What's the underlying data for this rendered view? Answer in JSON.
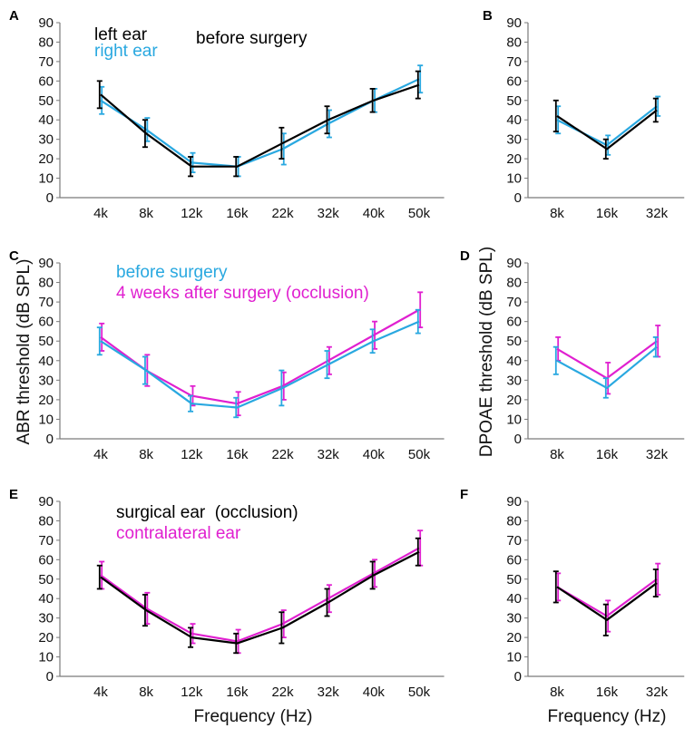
{
  "figure": {
    "ylabel_abr": "ABR threshold (dB SPL)",
    "ylabel_dpoae": "DPOAE threshold (dB SPL)",
    "xlabel_left": "Frequency (Hz)",
    "xlabel_right": "Frequency (Hz)"
  },
  "chart_data": [
    {
      "panel": "A",
      "type": "line",
      "categories": [
        "4k",
        "8k",
        "12k",
        "16k",
        "22k",
        "32k",
        "40k",
        "50k"
      ],
      "ylim": [
        0,
        90
      ],
      "yticks": [
        0,
        10,
        20,
        30,
        40,
        50,
        60,
        70,
        80,
        90
      ],
      "series": [
        {
          "name": "left ear",
          "color": "#000000",
          "values": [
            53,
            33,
            16,
            16,
            28,
            40,
            50,
            58
          ],
          "err": [
            7,
            7,
            5,
            5,
            8,
            7,
            6,
            7
          ]
        },
        {
          "name": "right ear",
          "color": "#29a8e0",
          "values": [
            50,
            35,
            18,
            16,
            25,
            38,
            50,
            61
          ],
          "err": [
            7,
            6,
            5,
            5,
            8,
            7,
            6,
            7
          ]
        }
      ],
      "legend": [
        {
          "text": "left ear",
          "color": "#000000"
        },
        {
          "text": "right ear",
          "color": "#29a8e0"
        },
        {
          "text": "before surgery",
          "color": "#000000"
        }
      ]
    },
    {
      "panel": "B",
      "type": "line",
      "categories": [
        "8k",
        "16k",
        "32k"
      ],
      "ylim": [
        0,
        90
      ],
      "yticks": [
        0,
        10,
        20,
        30,
        40,
        50,
        60,
        70,
        80,
        90
      ],
      "series": [
        {
          "name": "left ear",
          "color": "#000000",
          "values": [
            42,
            25,
            45
          ],
          "err": [
            8,
            5,
            6
          ]
        },
        {
          "name": "right ear",
          "color": "#29a8e0",
          "values": [
            40,
            27,
            47
          ],
          "err": [
            7,
            5,
            5
          ]
        }
      ],
      "legend": []
    },
    {
      "panel": "C",
      "type": "line",
      "categories": [
        "4k",
        "8k",
        "12k",
        "16k",
        "22k",
        "32k",
        "40k",
        "50k"
      ],
      "ylim": [
        0,
        90
      ],
      "yticks": [
        0,
        10,
        20,
        30,
        40,
        50,
        60,
        70,
        80,
        90
      ],
      "series": [
        {
          "name": "before surgery",
          "color": "#29a8e0",
          "values": [
            50,
            35,
            18,
            16,
            26,
            38,
            50,
            60
          ],
          "err": [
            7,
            7,
            4,
            5,
            9,
            7,
            6,
            6
          ]
        },
        {
          "name": "4 weeks after surgery (occlusion)",
          "color": "#e020d0",
          "values": [
            52,
            35,
            22,
            18,
            27,
            40,
            53,
            66
          ],
          "err": [
            7,
            8,
            5,
            6,
            7,
            7,
            7,
            9
          ]
        }
      ],
      "legend": [
        {
          "text": "before surgery",
          "color": "#29a8e0"
        },
        {
          "text": "4 weeks after surgery (occlusion)",
          "color": "#e020d0"
        }
      ]
    },
    {
      "panel": "D",
      "type": "line",
      "categories": [
        "8k",
        "16k",
        "32k"
      ],
      "ylim": [
        0,
        90
      ],
      "yticks": [
        0,
        10,
        20,
        30,
        40,
        50,
        60,
        70,
        80,
        90
      ],
      "series": [
        {
          "name": "before surgery",
          "color": "#29a8e0",
          "values": [
            40,
            26,
            47
          ],
          "err": [
            7,
            5,
            5
          ]
        },
        {
          "name": "4 weeks after surgery (occlusion)",
          "color": "#e020d0",
          "values": [
            46,
            31,
            50
          ],
          "err": [
            6,
            8,
            8
          ]
        }
      ],
      "legend": []
    },
    {
      "panel": "E",
      "type": "line",
      "categories": [
        "4k",
        "8k",
        "12k",
        "16k",
        "22k",
        "32k",
        "40k",
        "50k"
      ],
      "ylim": [
        0,
        90
      ],
      "yticks": [
        0,
        10,
        20,
        30,
        40,
        50,
        60,
        70,
        80,
        90
      ],
      "series": [
        {
          "name": "surgical ear (occlusion)",
          "color": "#000000",
          "values": [
            51,
            34,
            20,
            17,
            25,
            38,
            52,
            64
          ],
          "err": [
            6,
            8,
            5,
            5,
            8,
            7,
            7,
            7
          ]
        },
        {
          "name": "contralateral ear",
          "color": "#e020d0",
          "values": [
            52,
            35,
            22,
            18,
            27,
            40,
            53,
            66
          ],
          "err": [
            7,
            8,
            5,
            6,
            7,
            7,
            7,
            9
          ]
        }
      ],
      "legend": [
        {
          "text": "surgical ear  (occlusion)",
          "color": "#000000"
        },
        {
          "text": "contralateral ear",
          "color": "#e020d0"
        }
      ]
    },
    {
      "panel": "F",
      "type": "line",
      "categories": [
        "8k",
        "16k",
        "32k"
      ],
      "ylim": [
        0,
        90
      ],
      "yticks": [
        0,
        10,
        20,
        30,
        40,
        50,
        60,
        70,
        80,
        90
      ],
      "series": [
        {
          "name": "surgical ear (occlusion)",
          "color": "#000000",
          "values": [
            46,
            29,
            48
          ],
          "err": [
            8,
            8,
            7
          ]
        },
        {
          "name": "contralateral ear",
          "color": "#e020d0",
          "values": [
            46,
            31,
            50
          ],
          "err": [
            7,
            8,
            8
          ]
        }
      ],
      "legend": []
    }
  ]
}
